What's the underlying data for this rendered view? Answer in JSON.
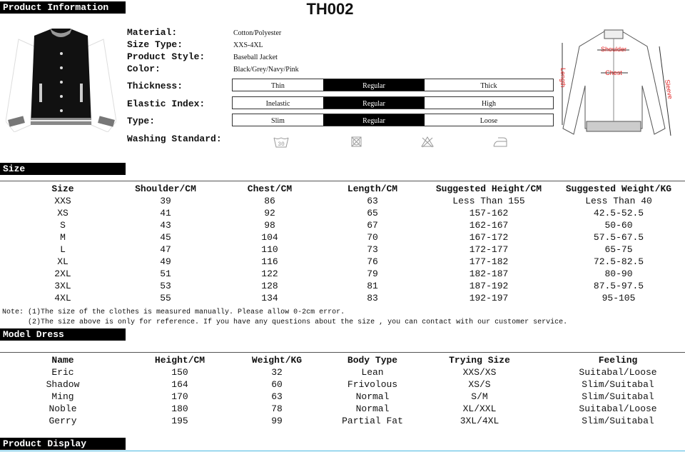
{
  "header": {
    "section_title": "Product Information",
    "product_code": "TH002"
  },
  "info": [
    {
      "label": "Material:",
      "value": "Cotton/Polyester"
    },
    {
      "label": "Size Type:",
      "value": "XXS-4XL"
    },
    {
      "label": "Product Style:",
      "value": "Baseball Jacket"
    },
    {
      "label": "Color:",
      "value": "Black/Grey/Navy/Pink"
    }
  ],
  "scales": [
    {
      "label": "Thickness:",
      "options": [
        "Thin",
        "Regular",
        "Thick"
      ],
      "selected": "Regular"
    },
    {
      "label": "Elastic Index:",
      "options": [
        "Inelastic",
        "Regular",
        "High"
      ],
      "selected": "Regular"
    },
    {
      "label": "Type:",
      "options": [
        "Slim",
        "Regular",
        "Loose"
      ],
      "selected": "Regular"
    }
  ],
  "washing": {
    "label": "Washing Standard:",
    "icons": [
      "wash-30-icon",
      "no-tumble-dry-icon",
      "no-bleach-icon",
      "iron-low-icon"
    ],
    "wash_temp": "30"
  },
  "diagram": {
    "labels": [
      "Shoulder",
      "Chest",
      "Length",
      "Sleeve"
    ],
    "label_color": "#e02020"
  },
  "size": {
    "section_title": "Size",
    "headers": [
      "Size",
      "Shoulder/CM",
      "Chest/CM",
      "Length/CM",
      "Suggested Height/CM",
      "Suggested Weight/KG"
    ],
    "rows": [
      [
        "XXS",
        "39",
        "86",
        "63",
        "Less Than 155",
        "Less Than 40"
      ],
      [
        "XS",
        "41",
        "92",
        "65",
        "157-162",
        "42.5-52.5"
      ],
      [
        "S",
        "43",
        "98",
        "67",
        "162-167",
        "50-60"
      ],
      [
        "M",
        "45",
        "104",
        "70",
        "167-172",
        "57.5-67.5"
      ],
      [
        "L",
        "47",
        "110",
        "73",
        "172-177",
        "65-75"
      ],
      [
        "XL",
        "49",
        "116",
        "76",
        "177-182",
        "72.5-82.5"
      ],
      [
        "2XL",
        "51",
        "122",
        "79",
        "182-187",
        "80-90"
      ],
      [
        "3XL",
        "53",
        "128",
        "81",
        "187-192",
        "87.5-97.5"
      ],
      [
        "4XL",
        "55",
        "134",
        "83",
        "192-197",
        "95-105"
      ]
    ],
    "notes": [
      "Note: (1)The size of the clothes is measured manually. Please allow 0-2cm error.",
      "      (2)The size above is only for reference. If you have any questions about the size , you can contact with our customer service."
    ]
  },
  "model": {
    "section_title": "Model Dress",
    "headers": [
      "Name",
      "Height/CM",
      "Weight/KG",
      "Body Type",
      "Trying Size",
      "Feeling"
    ],
    "rows": [
      [
        "Eric",
        "150",
        "32",
        "Lean",
        "XXS/XS",
        "Suitabal/Loose"
      ],
      [
        "Shadow",
        "164",
        "60",
        "Frivolous",
        "XS/S",
        "Slim/Suitabal"
      ],
      [
        "Ming",
        "170",
        "63",
        "Normal",
        "S/M",
        "Slim/Suitabal"
      ],
      [
        "Noble",
        "180",
        "78",
        "Normal",
        "XL/XXL",
        "Suitabal/Loose"
      ],
      [
        "Gerry",
        "195",
        "99",
        "Partial Fat",
        "3XL/4XL",
        "Slim/Suitabal"
      ]
    ]
  },
  "display": {
    "section_title": "Product Display"
  }
}
